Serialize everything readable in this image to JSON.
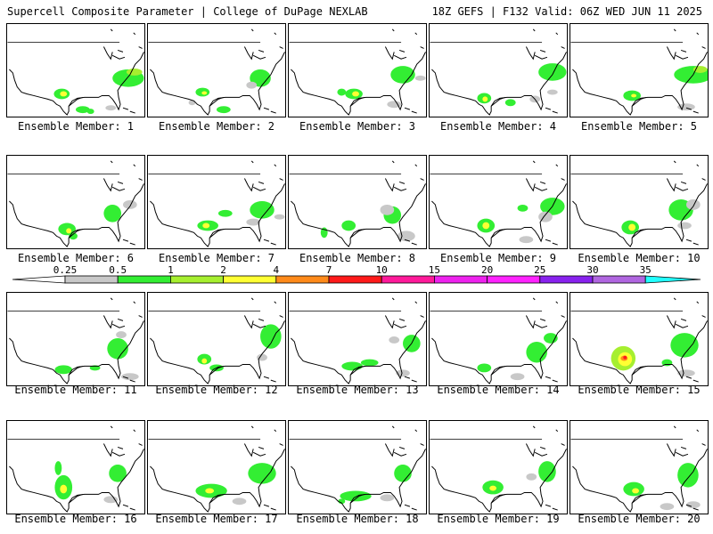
{
  "header": {
    "title": "Supercell Composite Parameter | College of DuPage NEXLAB",
    "run_info": "18Z GEFS | F132 Valid: 06Z WED JUN 11 2025"
  },
  "member_prefix": "Ensemble Member: ",
  "members": [
    "1",
    "2",
    "3",
    "4",
    "5",
    "6",
    "7",
    "8",
    "9",
    "10",
    "11",
    "12",
    "13",
    "14",
    "15",
    "16",
    "17",
    "18",
    "19",
    "20"
  ],
  "colorbar": {
    "levels": [
      "0.25",
      "0.5",
      "1",
      "2",
      "4",
      "7",
      "10",
      "15",
      "20",
      "25",
      "30",
      "35"
    ],
    "colors": {
      "gray": "#c8c8c8",
      "green": "#33ee33",
      "yellowgreen": "#a6ef2f",
      "yellow": "#ffff33",
      "orange": "#ff8a1a",
      "red": "#ff1a1a",
      "magenta_red": "#ff1a9a",
      "magenta": "#ee22ee",
      "light_magenta": "#ff22ff",
      "purple": "#8822ee",
      "lavender": "#b066e0",
      "cyan": "#22ffff"
    }
  }
}
